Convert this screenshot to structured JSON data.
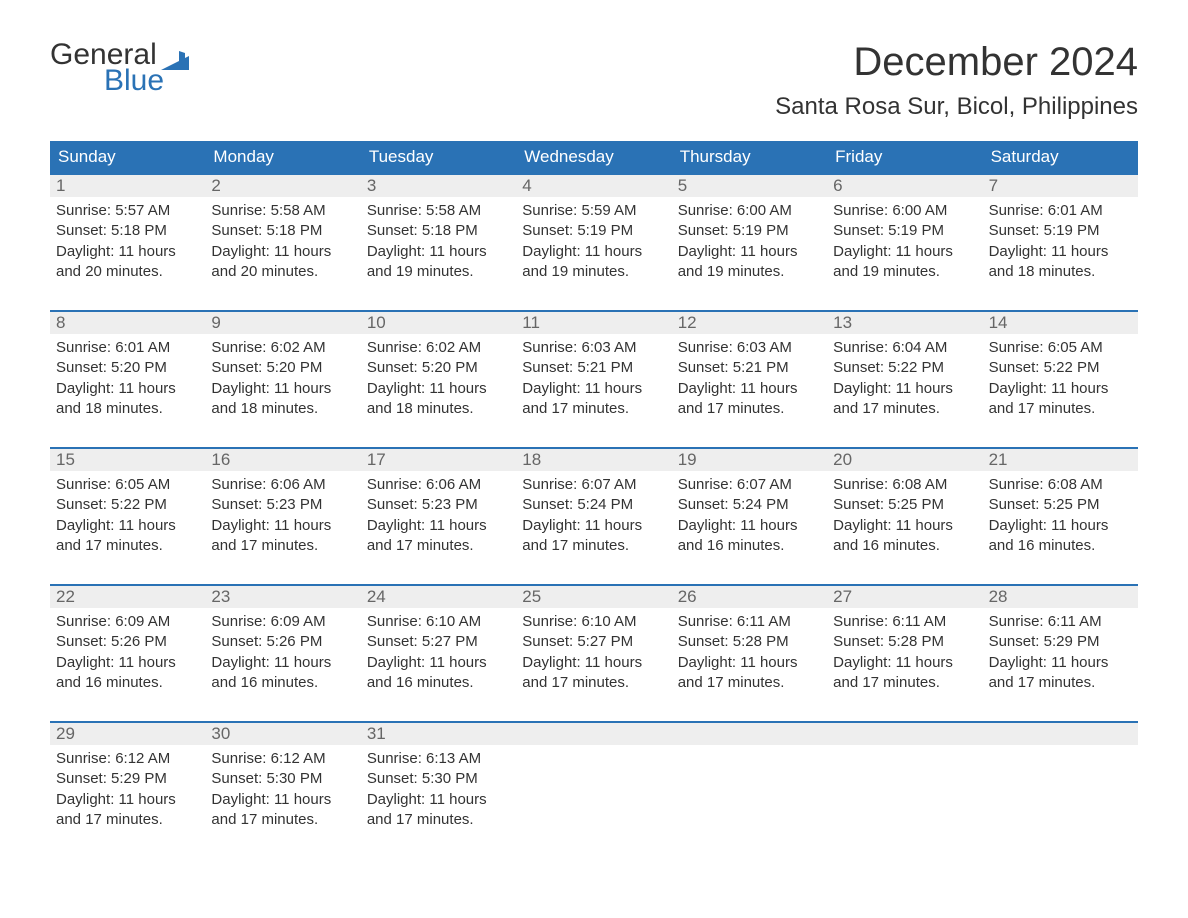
{
  "logo": {
    "line1": "General",
    "line2": "Blue",
    "accent_color": "#2a72b5"
  },
  "title": "December 2024",
  "location": "Santa Rosa Sur, Bicol, Philippines",
  "colors": {
    "header_bg": "#2a72b5",
    "header_text": "#ffffff",
    "daynum_bg": "#eeeeee",
    "daynum_text": "#666666",
    "week_border": "#2a72b5",
    "body_text": "#333333",
    "page_bg": "#ffffff"
  },
  "fonts": {
    "title_size_pt": 30,
    "location_size_pt": 18,
    "weekday_size_pt": 13,
    "body_size_pt": 11
  },
  "weekdays": [
    "Sunday",
    "Monday",
    "Tuesday",
    "Wednesday",
    "Thursday",
    "Friday",
    "Saturday"
  ],
  "days": [
    {
      "n": "1",
      "sunrise": "Sunrise: 5:57 AM",
      "sunset": "Sunset: 5:18 PM",
      "dl1": "Daylight: 11 hours",
      "dl2": "and 20 minutes."
    },
    {
      "n": "2",
      "sunrise": "Sunrise: 5:58 AM",
      "sunset": "Sunset: 5:18 PM",
      "dl1": "Daylight: 11 hours",
      "dl2": "and 20 minutes."
    },
    {
      "n": "3",
      "sunrise": "Sunrise: 5:58 AM",
      "sunset": "Sunset: 5:18 PM",
      "dl1": "Daylight: 11 hours",
      "dl2": "and 19 minutes."
    },
    {
      "n": "4",
      "sunrise": "Sunrise: 5:59 AM",
      "sunset": "Sunset: 5:19 PM",
      "dl1": "Daylight: 11 hours",
      "dl2": "and 19 minutes."
    },
    {
      "n": "5",
      "sunrise": "Sunrise: 6:00 AM",
      "sunset": "Sunset: 5:19 PM",
      "dl1": "Daylight: 11 hours",
      "dl2": "and 19 minutes."
    },
    {
      "n": "6",
      "sunrise": "Sunrise: 6:00 AM",
      "sunset": "Sunset: 5:19 PM",
      "dl1": "Daylight: 11 hours",
      "dl2": "and 19 minutes."
    },
    {
      "n": "7",
      "sunrise": "Sunrise: 6:01 AM",
      "sunset": "Sunset: 5:19 PM",
      "dl1": "Daylight: 11 hours",
      "dl2": "and 18 minutes."
    },
    {
      "n": "8",
      "sunrise": "Sunrise: 6:01 AM",
      "sunset": "Sunset: 5:20 PM",
      "dl1": "Daylight: 11 hours",
      "dl2": "and 18 minutes."
    },
    {
      "n": "9",
      "sunrise": "Sunrise: 6:02 AM",
      "sunset": "Sunset: 5:20 PM",
      "dl1": "Daylight: 11 hours",
      "dl2": "and 18 minutes."
    },
    {
      "n": "10",
      "sunrise": "Sunrise: 6:02 AM",
      "sunset": "Sunset: 5:20 PM",
      "dl1": "Daylight: 11 hours",
      "dl2": "and 18 minutes."
    },
    {
      "n": "11",
      "sunrise": "Sunrise: 6:03 AM",
      "sunset": "Sunset: 5:21 PM",
      "dl1": "Daylight: 11 hours",
      "dl2": "and 17 minutes."
    },
    {
      "n": "12",
      "sunrise": "Sunrise: 6:03 AM",
      "sunset": "Sunset: 5:21 PM",
      "dl1": "Daylight: 11 hours",
      "dl2": "and 17 minutes."
    },
    {
      "n": "13",
      "sunrise": "Sunrise: 6:04 AM",
      "sunset": "Sunset: 5:22 PM",
      "dl1": "Daylight: 11 hours",
      "dl2": "and 17 minutes."
    },
    {
      "n": "14",
      "sunrise": "Sunrise: 6:05 AM",
      "sunset": "Sunset: 5:22 PM",
      "dl1": "Daylight: 11 hours",
      "dl2": "and 17 minutes."
    },
    {
      "n": "15",
      "sunrise": "Sunrise: 6:05 AM",
      "sunset": "Sunset: 5:22 PM",
      "dl1": "Daylight: 11 hours",
      "dl2": "and 17 minutes."
    },
    {
      "n": "16",
      "sunrise": "Sunrise: 6:06 AM",
      "sunset": "Sunset: 5:23 PM",
      "dl1": "Daylight: 11 hours",
      "dl2": "and 17 minutes."
    },
    {
      "n": "17",
      "sunrise": "Sunrise: 6:06 AM",
      "sunset": "Sunset: 5:23 PM",
      "dl1": "Daylight: 11 hours",
      "dl2": "and 17 minutes."
    },
    {
      "n": "18",
      "sunrise": "Sunrise: 6:07 AM",
      "sunset": "Sunset: 5:24 PM",
      "dl1": "Daylight: 11 hours",
      "dl2": "and 17 minutes."
    },
    {
      "n": "19",
      "sunrise": "Sunrise: 6:07 AM",
      "sunset": "Sunset: 5:24 PM",
      "dl1": "Daylight: 11 hours",
      "dl2": "and 16 minutes."
    },
    {
      "n": "20",
      "sunrise": "Sunrise: 6:08 AM",
      "sunset": "Sunset: 5:25 PM",
      "dl1": "Daylight: 11 hours",
      "dl2": "and 16 minutes."
    },
    {
      "n": "21",
      "sunrise": "Sunrise: 6:08 AM",
      "sunset": "Sunset: 5:25 PM",
      "dl1": "Daylight: 11 hours",
      "dl2": "and 16 minutes."
    },
    {
      "n": "22",
      "sunrise": "Sunrise: 6:09 AM",
      "sunset": "Sunset: 5:26 PM",
      "dl1": "Daylight: 11 hours",
      "dl2": "and 16 minutes."
    },
    {
      "n": "23",
      "sunrise": "Sunrise: 6:09 AM",
      "sunset": "Sunset: 5:26 PM",
      "dl1": "Daylight: 11 hours",
      "dl2": "and 16 minutes."
    },
    {
      "n": "24",
      "sunrise": "Sunrise: 6:10 AM",
      "sunset": "Sunset: 5:27 PM",
      "dl1": "Daylight: 11 hours",
      "dl2": "and 16 minutes."
    },
    {
      "n": "25",
      "sunrise": "Sunrise: 6:10 AM",
      "sunset": "Sunset: 5:27 PM",
      "dl1": "Daylight: 11 hours",
      "dl2": "and 17 minutes."
    },
    {
      "n": "26",
      "sunrise": "Sunrise: 6:11 AM",
      "sunset": "Sunset: 5:28 PM",
      "dl1": "Daylight: 11 hours",
      "dl2": "and 17 minutes."
    },
    {
      "n": "27",
      "sunrise": "Sunrise: 6:11 AM",
      "sunset": "Sunset: 5:28 PM",
      "dl1": "Daylight: 11 hours",
      "dl2": "and 17 minutes."
    },
    {
      "n": "28",
      "sunrise": "Sunrise: 6:11 AM",
      "sunset": "Sunset: 5:29 PM",
      "dl1": "Daylight: 11 hours",
      "dl2": "and 17 minutes."
    },
    {
      "n": "29",
      "sunrise": "Sunrise: 6:12 AM",
      "sunset": "Sunset: 5:29 PM",
      "dl1": "Daylight: 11 hours",
      "dl2": "and 17 minutes."
    },
    {
      "n": "30",
      "sunrise": "Sunrise: 6:12 AM",
      "sunset": "Sunset: 5:30 PM",
      "dl1": "Daylight: 11 hours",
      "dl2": "and 17 minutes."
    },
    {
      "n": "31",
      "sunrise": "Sunrise: 6:13 AM",
      "sunset": "Sunset: 5:30 PM",
      "dl1": "Daylight: 11 hours",
      "dl2": "and 17 minutes."
    }
  ],
  "grid": {
    "columns": 7,
    "start_offset": 0,
    "total_cells": 35
  }
}
